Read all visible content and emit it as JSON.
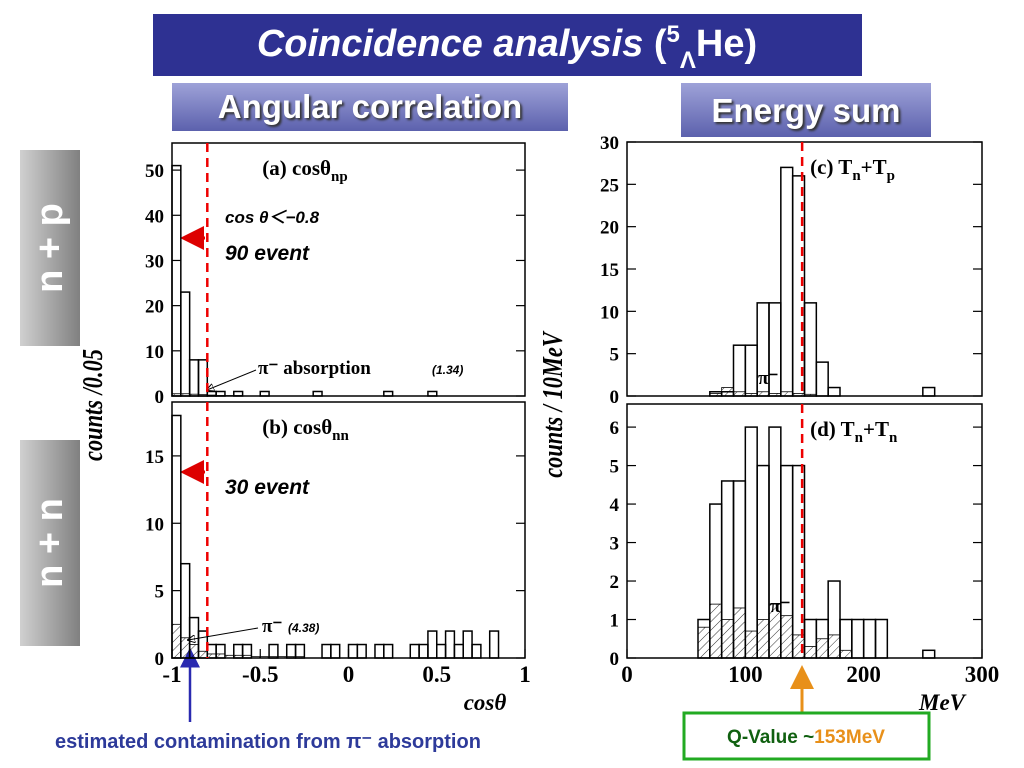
{
  "title": {
    "main": "Coincidence analysis",
    "open": "(",
    "mass": "5",
    "hyper": "Λ",
    "rest": "He)"
  },
  "headers": [
    "Angular correlation",
    "Energy sum"
  ],
  "side_labels": [
    "n + p",
    "n + n"
  ],
  "left_ylabel": "counts /0.05",
  "right_ylabel": "counts / 10MeV",
  "annotations": {
    "cut": "cos θ＜−0.8",
    "np_events": "90 event",
    "nn_events": "30 event",
    "pi_a": "π⁻ absorption",
    "pi_a_value": "(1.34)",
    "pi_b": "π⁻",
    "pi_b_value": "(4.38)",
    "pi_c": "π⁻",
    "pi_d": "π⁻"
  },
  "footer": "estimated contamination from π⁻ absorption",
  "qvalue": {
    "label": "Q-Value ~",
    "value": "153MeV"
  },
  "chart_data": [
    {
      "type": "histogram",
      "label": "(a) cosθ",
      "label_sub": "np",
      "xlim": [
        -1,
        1
      ],
      "ylim": [
        0,
        56
      ],
      "yticks": [
        0,
        10,
        20,
        30,
        40,
        50
      ],
      "marker_line": -0.8,
      "bins": [
        -1,
        -0.95,
        -0.9,
        -0.85,
        -0.8,
        -0.75,
        -0.7,
        -0.65,
        -0.6,
        -0.55,
        -0.5,
        -0.45,
        -0.4,
        -0.35,
        -0.3,
        -0.25,
        -0.2,
        -0.15,
        -0.1,
        -0.05,
        0,
        0.05,
        0.1,
        0.15,
        0.2,
        0.25,
        0.3,
        0.35,
        0.4,
        0.45,
        0.5,
        0.55,
        0.6,
        0.65,
        0.7,
        0.75,
        0.8,
        0.85,
        0.9,
        0.95,
        1
      ],
      "series": [
        {
          "color": "#000000",
          "values": [
            51,
            23,
            8,
            8,
            1,
            1,
            0,
            1,
            0,
            0,
            1,
            0,
            0,
            0,
            0,
            0,
            1,
            0,
            0,
            0,
            0,
            0,
            0,
            0,
            1,
            0,
            0,
            0,
            0,
            1,
            0,
            0,
            0,
            0,
            0,
            0,
            0,
            0,
            0,
            0
          ]
        },
        {
          "color": "#000000",
          "hatch": true,
          "values": [
            0.5,
            0.5,
            0.4,
            0.3,
            0.2,
            0.1,
            0.1,
            0.1,
            0,
            0,
            0,
            0,
            0,
            0,
            0,
            0,
            0,
            0,
            0,
            0,
            0,
            0,
            0,
            0,
            0,
            0,
            0,
            0,
            0,
            0,
            0,
            0,
            0,
            0,
            0,
            0,
            0,
            0,
            0,
            0
          ]
        }
      ]
    },
    {
      "type": "histogram",
      "label": "(b) cosθ",
      "label_sub": "nn",
      "xlim": [
        -1,
        1
      ],
      "ylim": [
        0,
        19
      ],
      "yticks": [
        0,
        5,
        10,
        15
      ],
      "xticks": [
        -1,
        -0.5,
        0,
        0.5,
        1
      ],
      "xlabel": "cosθ",
      "marker_line": -0.8,
      "bins": [
        -1,
        -0.95,
        -0.9,
        -0.85,
        -0.8,
        -0.75,
        -0.7,
        -0.65,
        -0.6,
        -0.55,
        -0.5,
        -0.45,
        -0.4,
        -0.35,
        -0.3,
        -0.25,
        -0.2,
        -0.15,
        -0.1,
        -0.05,
        0,
        0.05,
        0.1,
        0.15,
        0.2,
        0.25,
        0.3,
        0.35,
        0.4,
        0.45,
        0.5,
        0.55,
        0.6,
        0.65,
        0.7,
        0.75,
        0.8,
        0.85,
        0.9,
        0.95,
        1
      ],
      "series": [
        {
          "color": "#000000",
          "values": [
            18,
            7,
            3,
            2,
            1,
            1,
            0,
            1,
            1,
            0,
            0,
            1,
            0,
            1,
            1,
            0,
            0,
            1,
            1,
            0,
            1,
            1,
            0,
            1,
            1,
            0,
            0,
            1,
            1,
            2,
            1,
            2,
            1,
            2,
            1,
            0,
            2,
            0,
            0,
            0
          ]
        },
        {
          "color": "#000000",
          "hatch": true,
          "values": [
            2.5,
            1.5,
            1,
            0.5,
            0.3,
            0.3,
            0.2,
            0.2,
            0.2,
            0.1,
            0.1,
            0.1,
            0.1,
            0.1,
            0.1,
            0,
            0,
            0,
            0,
            0,
            0,
            0,
            0,
            0,
            0,
            0,
            0,
            0,
            0,
            0,
            0,
            0,
            0,
            0,
            0,
            0,
            0,
            0,
            0,
            0
          ]
        }
      ]
    },
    {
      "type": "histogram",
      "label": "(c) T",
      "label_sub": "n",
      "label_mid": "+T",
      "label_sub2": "p",
      "xlim": [
        0,
        300
      ],
      "ylim": [
        0,
        30
      ],
      "yticks": [
        0,
        5,
        10,
        15,
        20,
        25,
        30
      ],
      "marker_line": 148,
      "bins": [
        0,
        10,
        20,
        30,
        40,
        50,
        60,
        70,
        80,
        90,
        100,
        110,
        120,
        130,
        140,
        150,
        160,
        170,
        180,
        190,
        200,
        210,
        220,
        230,
        240,
        250,
        260,
        270,
        280,
        290,
        300
      ],
      "series": [
        {
          "color": "#000000",
          "values": [
            0,
            0,
            0,
            0,
            0,
            0,
            0,
            0.5,
            0.5,
            6,
            6,
            11,
            11,
            27,
            26,
            11,
            4,
            1,
            0,
            0,
            0,
            0,
            0,
            0,
            0,
            1,
            0,
            0,
            0,
            0
          ]
        },
        {
          "color": "#000000",
          "hatch": true,
          "values": [
            0,
            0,
            0,
            0,
            0,
            0,
            0,
            0.3,
            1,
            0.5,
            0.3,
            0.5,
            0.3,
            0.5,
            0.3,
            0.2,
            0,
            0,
            0,
            0,
            0,
            0,
            0,
            0,
            0,
            0,
            0,
            0,
            0,
            0
          ]
        }
      ]
    },
    {
      "type": "histogram",
      "label": "(d) T",
      "label_sub": "n",
      "label_mid": "+T",
      "label_sub2": "n",
      "xlim": [
        0,
        300
      ],
      "ylim": [
        0,
        6.6
      ],
      "yticks": [
        0,
        1,
        2,
        3,
        4,
        5,
        6
      ],
      "xticks": [
        0,
        100,
        200,
        300
      ],
      "xlabel": "MeV",
      "marker_line": 148,
      "bins": [
        0,
        10,
        20,
        30,
        40,
        50,
        60,
        70,
        80,
        90,
        100,
        110,
        120,
        130,
        140,
        150,
        160,
        170,
        180,
        190,
        200,
        210,
        220,
        230,
        240,
        250,
        260,
        270,
        280,
        290,
        300
      ],
      "series": [
        {
          "color": "#000000",
          "values": [
            0,
            0,
            0,
            0,
            0,
            0,
            1,
            4,
            4.6,
            4.6,
            6,
            5,
            6,
            5,
            5,
            1,
            1,
            2,
            1,
            1,
            1,
            1,
            0,
            0,
            0,
            0.2,
            0,
            0,
            0,
            0
          ]
        },
        {
          "color": "#000000",
          "hatch": true,
          "values": [
            0,
            0,
            0,
            0,
            0,
            0,
            0.8,
            1.4,
            1,
            1.3,
            0.7,
            1,
            1.4,
            1.1,
            0.6,
            0.3,
            0.5,
            0.6,
            0.2,
            0,
            0,
            0,
            0,
            0,
            0,
            0,
            0,
            0,
            0,
            0
          ]
        }
      ]
    }
  ]
}
